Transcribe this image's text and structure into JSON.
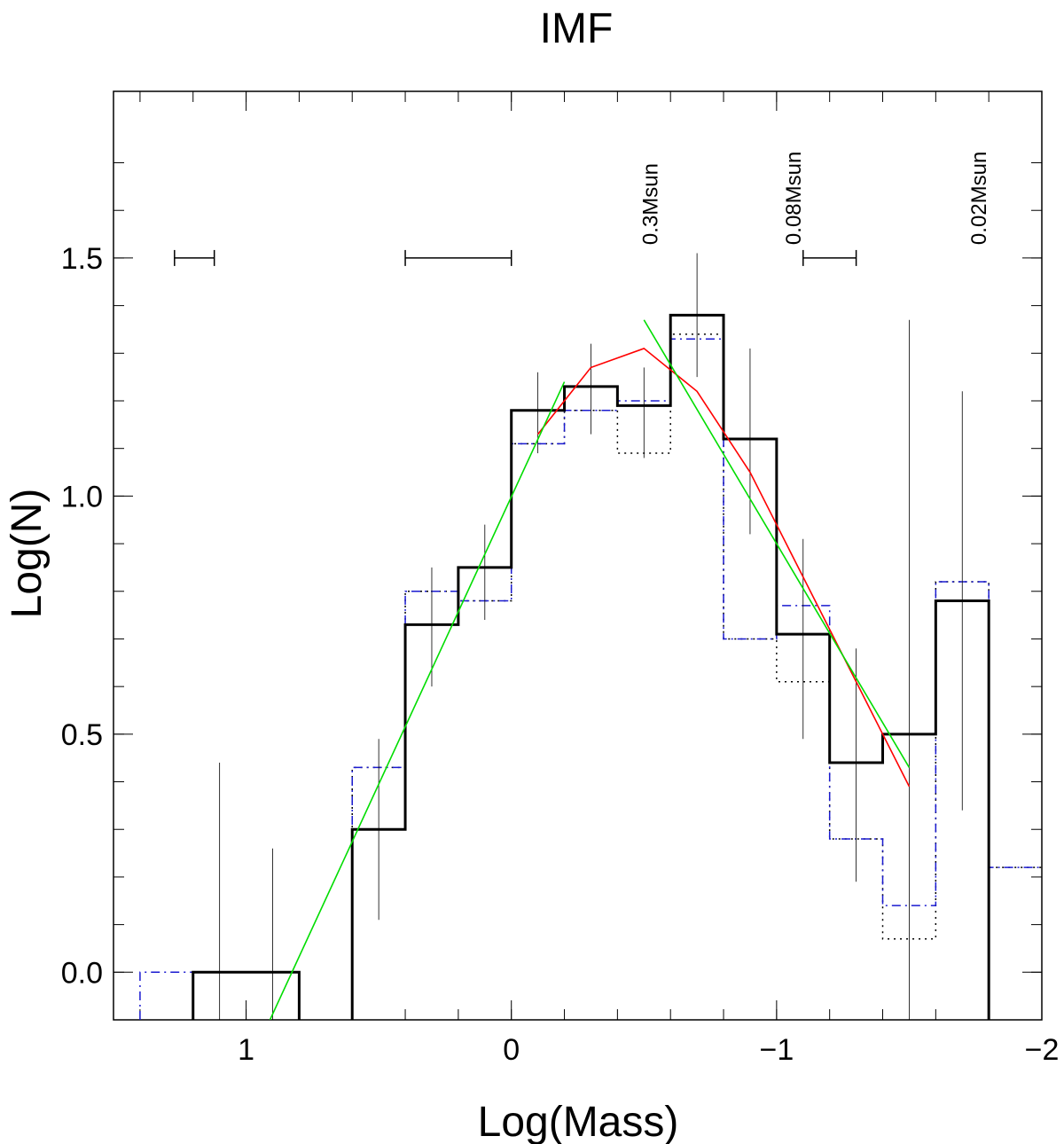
{
  "chart_data": {
    "type": "step",
    "title": "IMF",
    "xlabel": "Log(Mass)",
    "ylabel": "Log(N)",
    "xlim": [
      1.5,
      -2.0
    ],
    "ylim": [
      -0.1,
      1.85
    ],
    "x_reversed": true,
    "x_tick_labels": [
      {
        "value": 1,
        "label": "1"
      },
      {
        "value": 0,
        "label": "0"
      },
      {
        "value": -1,
        "label": "−1"
      },
      {
        "value": -2,
        "label": "−2"
      }
    ],
    "y_tick_labels": [
      {
        "value": 0.0,
        "label": "0.0"
      },
      {
        "value": 0.5,
        "label": "0.5"
      },
      {
        "value": 1.0,
        "label": "1.0"
      },
      {
        "value": 1.5,
        "label": "1.5"
      }
    ],
    "x_minor_ticks": [
      1.4,
      1.2,
      1.0,
      0.8,
      0.6,
      0.4,
      0.2,
      0.0,
      -0.2,
      -0.4,
      -0.6,
      -0.8,
      -1.0,
      -1.2,
      -1.4,
      -1.6,
      -1.8
    ],
    "y_minor_ticks": [
      0.0,
      0.1,
      0.2,
      0.3,
      0.4,
      0.5,
      0.6,
      0.7,
      0.8,
      0.9,
      1.0,
      1.1,
      1.2,
      1.3,
      1.4,
      1.5,
      1.6,
      1.7
    ],
    "annotations": [
      {
        "text": "0.3Msun",
        "x": -0.52,
        "y": 1.55
      },
      {
        "text": "0.08Msun",
        "x": -1.06,
        "y": 1.55
      },
      {
        "text": "0.02Msun",
        "x": -1.76,
        "y": 1.55
      }
    ],
    "bin_width_bars": [
      {
        "x1": 1.27,
        "x2": 1.12,
        "y": 1.5
      },
      {
        "x1": 0.4,
        "x2": 0.0,
        "y": 1.5
      },
      {
        "x1": -1.1,
        "x2": -1.3,
        "y": 1.5
      }
    ],
    "series": [
      {
        "style": "solid-thick",
        "color": "#000000",
        "bins": [
          {
            "x1": 1.2,
            "x2": 1.0,
            "y": 0.0
          },
          {
            "x1": 1.0,
            "x2": 0.8,
            "y": 0.0
          },
          {
            "x1": 0.6,
            "x2": 0.4,
            "y": 0.3
          },
          {
            "x1": 0.4,
            "x2": 0.2,
            "y": 0.73
          },
          {
            "x1": 0.2,
            "x2": 0.0,
            "y": 0.85
          },
          {
            "x1": 0.0,
            "x2": -0.2,
            "y": 1.18
          },
          {
            "x1": -0.2,
            "x2": -0.4,
            "y": 1.23
          },
          {
            "x1": -0.4,
            "x2": -0.6,
            "y": 1.19
          },
          {
            "x1": -0.6,
            "x2": -0.8,
            "y": 1.38
          },
          {
            "x1": -0.8,
            "x2": -1.0,
            "y": 1.12
          },
          {
            "x1": -1.0,
            "x2": -1.2,
            "y": 0.71
          },
          {
            "x1": -1.2,
            "x2": -1.4,
            "y": 0.44
          },
          {
            "x1": -1.4,
            "x2": -1.6,
            "y": 0.5
          },
          {
            "x1": -1.6,
            "x2": -1.8,
            "y": 0.78
          }
        ]
      },
      {
        "style": "dotted",
        "color": "#000000",
        "bins": [
          {
            "x1": 0.6,
            "x2": 0.4,
            "y": 0.43
          },
          {
            "x1": 0.4,
            "x2": 0.2,
            "y": 0.8
          },
          {
            "x1": 0.2,
            "x2": 0.0,
            "y": 0.78
          },
          {
            "x1": 0.0,
            "x2": -0.2,
            "y": 1.11
          },
          {
            "x1": -0.2,
            "x2": -0.4,
            "y": 1.18
          },
          {
            "x1": -0.4,
            "x2": -0.6,
            "y": 1.09
          },
          {
            "x1": -0.6,
            "x2": -0.8,
            "y": 1.34
          },
          {
            "x1": -0.8,
            "x2": -1.0,
            "y": 0.7
          },
          {
            "x1": -1.0,
            "x2": -1.2,
            "y": 0.61
          },
          {
            "x1": -1.2,
            "x2": -1.4,
            "y": 0.28
          },
          {
            "x1": -1.4,
            "x2": -1.6,
            "y": 0.07
          },
          {
            "x1": -1.6,
            "x2": -1.8,
            "y": 0.82
          },
          {
            "x1": -1.8,
            "x2": -2.0,
            "y": 0.22
          }
        ]
      },
      {
        "style": "dash-dot",
        "color": "#1a1ad0",
        "bins": [
          {
            "x1": 1.4,
            "x2": 1.2,
            "y": 0.0
          },
          {
            "x1": 1.2,
            "x2": 1.0,
            "y": 0.0
          },
          {
            "x1": 1.0,
            "x2": 0.8,
            "y": 0.0
          },
          {
            "x1": 0.6,
            "x2": 0.4,
            "y": 0.43
          },
          {
            "x1": 0.4,
            "x2": 0.2,
            "y": 0.8
          },
          {
            "x1": 0.2,
            "x2": 0.0,
            "y": 0.78
          },
          {
            "x1": 0.0,
            "x2": -0.2,
            "y": 1.11
          },
          {
            "x1": -0.2,
            "x2": -0.4,
            "y": 1.18
          },
          {
            "x1": -0.4,
            "x2": -0.6,
            "y": 1.2
          },
          {
            "x1": -0.6,
            "x2": -0.8,
            "y": 1.33
          },
          {
            "x1": -0.8,
            "x2": -1.0,
            "y": 0.7
          },
          {
            "x1": -1.0,
            "x2": -1.2,
            "y": 0.77
          },
          {
            "x1": -1.2,
            "x2": -1.4,
            "y": 0.28
          },
          {
            "x1": -1.4,
            "x2": -1.6,
            "y": 0.14
          },
          {
            "x1": -1.6,
            "x2": -1.8,
            "y": 0.82
          },
          {
            "x1": -1.8,
            "x2": -2.0,
            "y": 0.22
          }
        ]
      }
    ],
    "error_bars": [
      {
        "x": 1.1,
        "ylow": -0.1,
        "yhigh": 0.44
      },
      {
        "x": 0.9,
        "ylow": -0.1,
        "yhigh": 0.26
      },
      {
        "x": 0.5,
        "ylow": 0.11,
        "yhigh": 0.49
      },
      {
        "x": 0.3,
        "ylow": 0.6,
        "yhigh": 0.85
      },
      {
        "x": 0.1,
        "ylow": 0.74,
        "yhigh": 0.94
      },
      {
        "x": -0.1,
        "ylow": 1.09,
        "yhigh": 1.26
      },
      {
        "x": -0.3,
        "ylow": 1.13,
        "yhigh": 1.32
      },
      {
        "x": -0.5,
        "ylow": 1.08,
        "yhigh": 1.27
      },
      {
        "x": -0.7,
        "ylow": 1.25,
        "yhigh": 1.51
      },
      {
        "x": -0.9,
        "ylow": 0.92,
        "yhigh": 1.31
      },
      {
        "x": -1.1,
        "ylow": 0.49,
        "yhigh": 0.91
      },
      {
        "x": -1.3,
        "ylow": 0.19,
        "yhigh": 0.68
      },
      {
        "x": -1.5,
        "ylow": -0.1,
        "yhigh": 1.37
      },
      {
        "x": -1.7,
        "ylow": 0.34,
        "yhigh": 1.22
      }
    ],
    "fit_lines": [
      {
        "color": "#ff0000",
        "points": [
          [
            -0.1,
            1.13
          ],
          [
            -0.3,
            1.27
          ],
          [
            -0.5,
            1.31
          ],
          [
            -0.7,
            1.22
          ],
          [
            -0.9,
            1.05
          ],
          [
            -1.1,
            0.83
          ],
          [
            -1.3,
            0.61
          ],
          [
            -1.5,
            0.39
          ]
        ]
      },
      {
        "color": "#00dd00",
        "points": [
          [
            0.91,
            -0.1
          ],
          [
            -0.2,
            1.24
          ]
        ]
      },
      {
        "color": "#00dd00",
        "points": [
          [
            -0.5,
            1.37
          ],
          [
            -1.5,
            0.43
          ]
        ]
      }
    ]
  }
}
